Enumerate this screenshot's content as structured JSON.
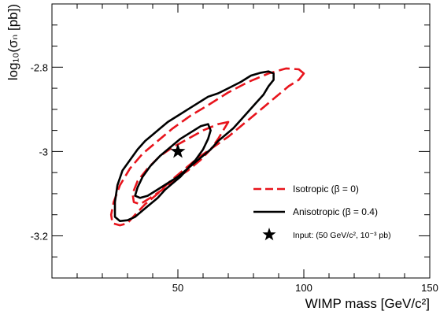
{
  "chart_data": {
    "type": "contour",
    "xlabel": "WIMP mass [GeV/c²]",
    "ylabel": "log₁₀(σₙ [pb])",
    "xlim": [
      0,
      150
    ],
    "ylim": [
      -3.3,
      -2.65
    ],
    "xticks": [
      50,
      100,
      150
    ],
    "yticks": [
      -3.2,
      -3.0,
      -2.8
    ],
    "xtick_labels": [
      "50",
      "100",
      "150"
    ],
    "ytick_labels": [
      "-3.2",
      "-3",
      "-2.8"
    ],
    "grid": false,
    "legend_position": "right",
    "series": [
      {
        "name": "Isotropic (β = 0)",
        "style": "dashed",
        "color": "#e8141c",
        "contours": [
          [
            [
              100,
              -2.815
            ],
            [
              98,
              -2.805
            ],
            [
              93,
              -2.803
            ],
            [
              86,
              -2.815
            ],
            [
              78,
              -2.835
            ],
            [
              70,
              -2.86
            ],
            [
              62,
              -2.89
            ],
            [
              55,
              -2.915
            ],
            [
              48,
              -2.945
            ],
            [
              42,
              -2.975
            ],
            [
              36,
              -3.005
            ],
            [
              31,
              -3.04
            ],
            [
              27,
              -3.08
            ],
            [
              24.5,
              -3.12
            ],
            [
              23.5,
              -3.15
            ],
            [
              24,
              -3.17
            ],
            [
              27,
              -3.175
            ],
            [
              30,
              -3.17
            ],
            [
              33,
              -3.15
            ],
            [
              37,
              -3.125
            ],
            [
              42,
              -3.1
            ],
            [
              47,
              -3.07
            ],
            [
              53,
              -3.04
            ],
            [
              58,
              -3.015
            ],
            [
              64,
              -2.99
            ],
            [
              70,
              -2.965
            ],
            [
              74,
              -2.945
            ],
            [
              79,
              -2.92
            ],
            [
              84,
              -2.895
            ],
            [
              89,
              -2.87
            ],
            [
              94,
              -2.845
            ],
            [
              98,
              -2.83
            ],
            [
              100,
              -2.815
            ]
          ],
          [
            [
              70,
              -2.93
            ],
            [
              66,
              -2.935
            ],
            [
              60,
              -2.95
            ],
            [
              54,
              -2.97
            ],
            [
              48,
              -2.99
            ],
            [
              43,
              -3.01
            ],
            [
              38,
              -3.04
            ],
            [
              34,
              -3.07
            ],
            [
              32,
              -3.1
            ],
            [
              32.5,
              -3.12
            ],
            [
              35,
              -3.125
            ],
            [
              39,
              -3.11
            ],
            [
              44,
              -3.09
            ],
            [
              49,
              -3.065
            ],
            [
              54,
              -3.045
            ],
            [
              59,
              -3.02
            ],
            [
              63,
              -2.995
            ],
            [
              66,
              -2.97
            ],
            [
              68,
              -2.95
            ],
            [
              70,
              -2.93
            ]
          ]
        ]
      },
      {
        "name": "Anisotropic (β = 0.4)",
        "style": "solid",
        "color": "#000000",
        "contours": [
          [
            [
              88,
              -2.815
            ],
            [
              86,
              -2.81
            ],
            [
              83,
              -2.813
            ],
            [
              79,
              -2.82
            ],
            [
              75,
              -2.835
            ],
            [
              70,
              -2.85
            ],
            [
              66,
              -2.862
            ],
            [
              62,
              -2.87
            ],
            [
              58,
              -2.885
            ],
            [
              54,
              -2.9
            ],
            [
              50,
              -2.915
            ],
            [
              46,
              -2.93
            ],
            [
              43,
              -2.945
            ],
            [
              40,
              -2.96
            ],
            [
              37,
              -2.975
            ],
            [
              34,
              -2.995
            ],
            [
              31,
              -3.02
            ],
            [
              28,
              -3.045
            ],
            [
              26,
              -3.08
            ],
            [
              25,
              -3.12
            ],
            [
              25,
              -3.155
            ],
            [
              27,
              -3.165
            ],
            [
              30,
              -3.163
            ],
            [
              33,
              -3.155
            ],
            [
              36,
              -3.14
            ],
            [
              39,
              -3.125
            ],
            [
              42,
              -3.11
            ],
            [
              45,
              -3.09
            ],
            [
              48,
              -3.075
            ],
            [
              51,
              -3.06
            ],
            [
              54,
              -3.04
            ],
            [
              57,
              -3.025
            ],
            [
              60,
              -3.01
            ],
            [
              63,
              -2.995
            ],
            [
              66,
              -2.975
            ],
            [
              69,
              -2.96
            ],
            [
              72,
              -2.945
            ],
            [
              75,
              -2.925
            ],
            [
              78,
              -2.905
            ],
            [
              81,
              -2.885
            ],
            [
              84,
              -2.865
            ],
            [
              86,
              -2.845
            ],
            [
              88,
              -2.83
            ],
            [
              88,
              -2.815
            ]
          ],
          [
            [
              62,
              -2.935
            ],
            [
              59,
              -2.94
            ],
            [
              55,
              -2.955
            ],
            [
              51,
              -2.97
            ],
            [
              47,
              -2.99
            ],
            [
              43,
              -3.01
            ],
            [
              39,
              -3.035
            ],
            [
              36,
              -3.06
            ],
            [
              34,
              -3.085
            ],
            [
              33,
              -3.105
            ],
            [
              35,
              -3.11
            ],
            [
              38,
              -3.105
            ],
            [
              42,
              -3.09
            ],
            [
              46,
              -3.075
            ],
            [
              50,
              -3.06
            ],
            [
              54,
              -3.04
            ],
            [
              57,
              -3.02
            ],
            [
              60,
              -2.995
            ],
            [
              62,
              -2.97
            ],
            [
              63,
              -2.95
            ],
            [
              62,
              -2.935
            ]
          ]
        ]
      }
    ],
    "marker": {
      "name": "Input: (50 GeV/c², 10⁻³ pb)",
      "x": 50,
      "y": -3.0,
      "symbol": "star"
    }
  }
}
